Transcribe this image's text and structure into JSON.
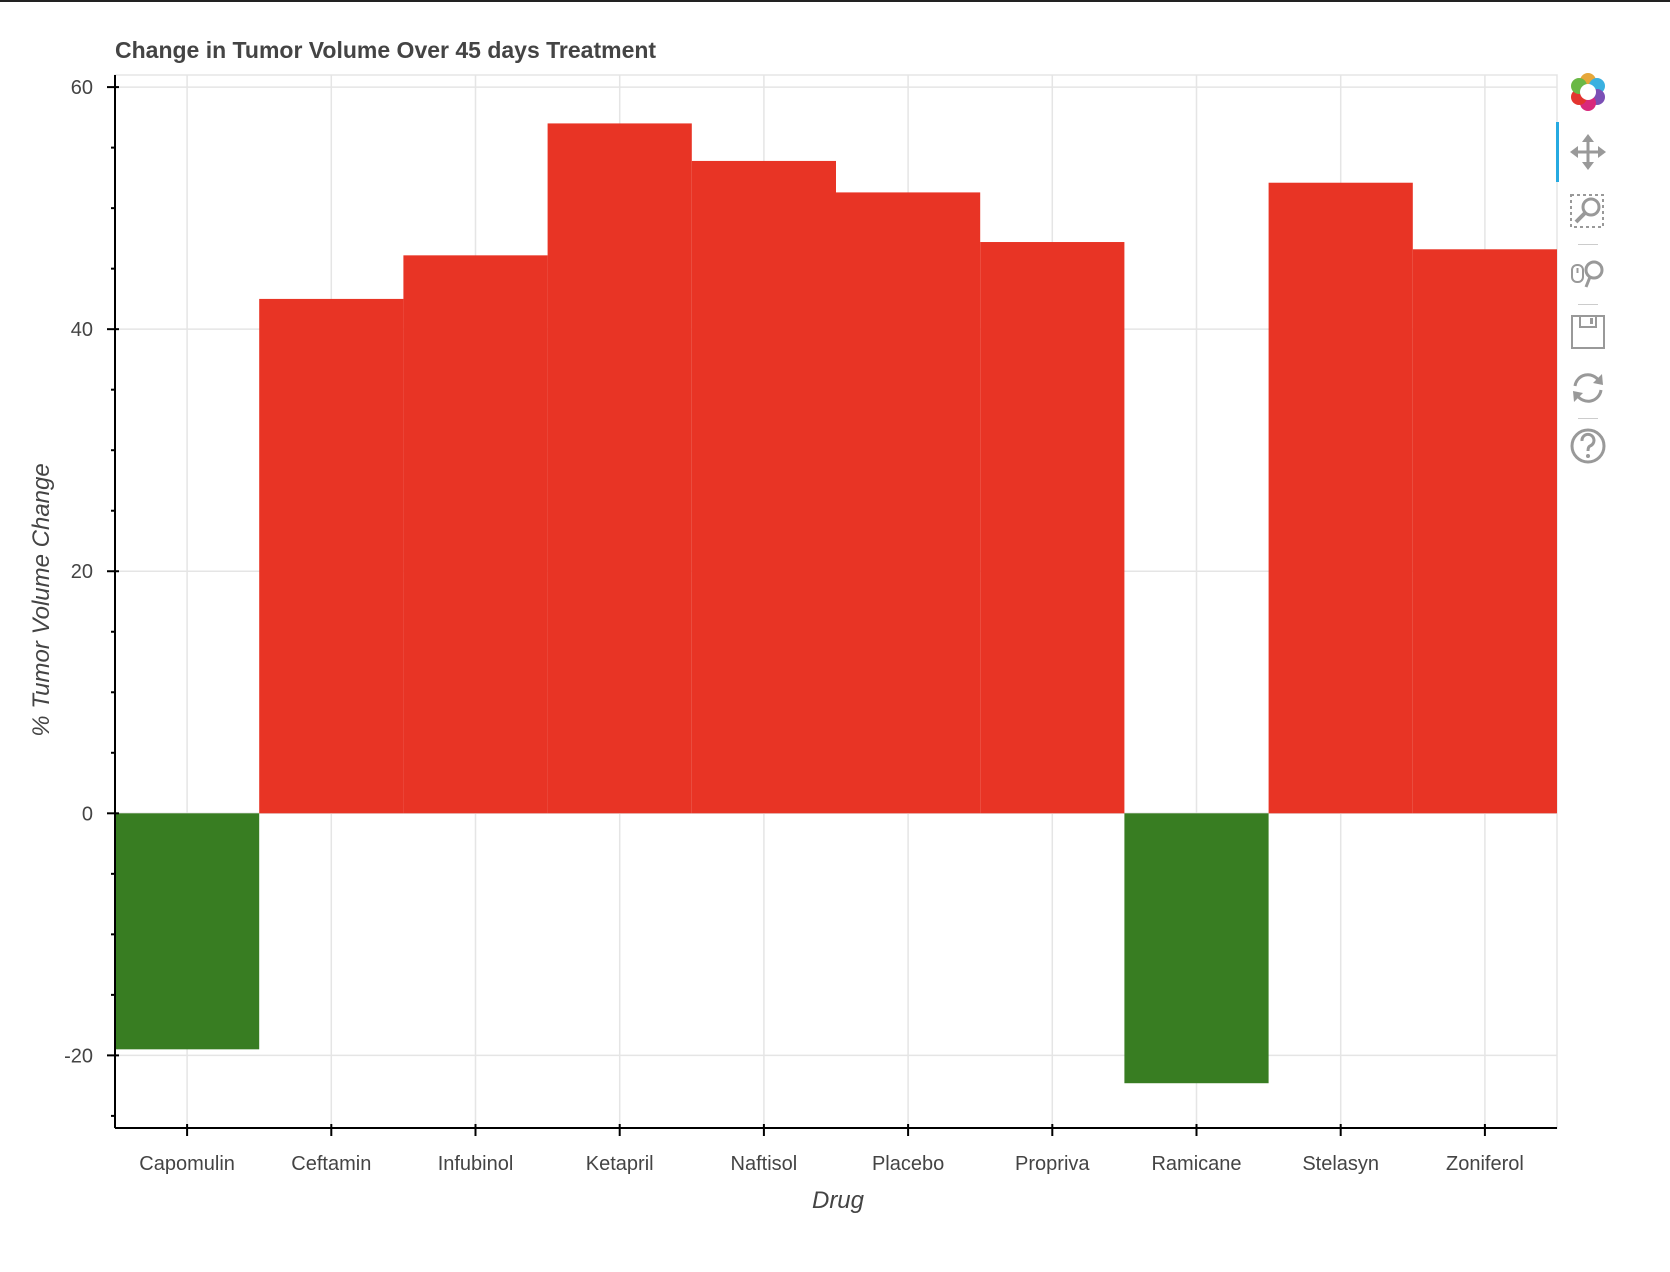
{
  "chart_data": {
    "type": "bar",
    "title": "Change in Tumor Volume Over 45 days Treatment",
    "xlabel": "Drug",
    "ylabel": "% Tumor Volume Change",
    "categories": [
      "Capomulin",
      "Ceftamin",
      "Infubinol",
      "Ketapril",
      "Naftisol",
      "Placebo",
      "Propriva",
      "Ramicane",
      "Stelasyn",
      "Zoniferol"
    ],
    "values": [
      -19.5,
      42.5,
      46.1,
      57.0,
      53.9,
      51.3,
      47.2,
      -22.3,
      52.1,
      46.6
    ],
    "ylim": [
      -26,
      61
    ],
    "yticks": [
      -20,
      0,
      20,
      40,
      60
    ],
    "ytick_labels": [
      "-20",
      "0",
      "20",
      "40",
      "60"
    ],
    "grid": true,
    "colors": {
      "positive": "#e83425",
      "negative": "#387d22"
    }
  },
  "toolbar": {
    "tools": [
      {
        "name": "bokeh-logo",
        "icon": "bokeh-logo-icon"
      },
      {
        "name": "pan-tool",
        "icon": "pan-icon"
      },
      {
        "name": "box-zoom-tool",
        "icon": "box-zoom-icon"
      },
      {
        "name": "wheel-zoom-tool",
        "icon": "wheel-zoom-icon"
      },
      {
        "name": "save-tool",
        "icon": "save-icon"
      },
      {
        "name": "reset-tool",
        "icon": "reset-icon"
      },
      {
        "name": "help-tool",
        "icon": "help-icon"
      }
    ],
    "active_color": "#26aae1"
  }
}
